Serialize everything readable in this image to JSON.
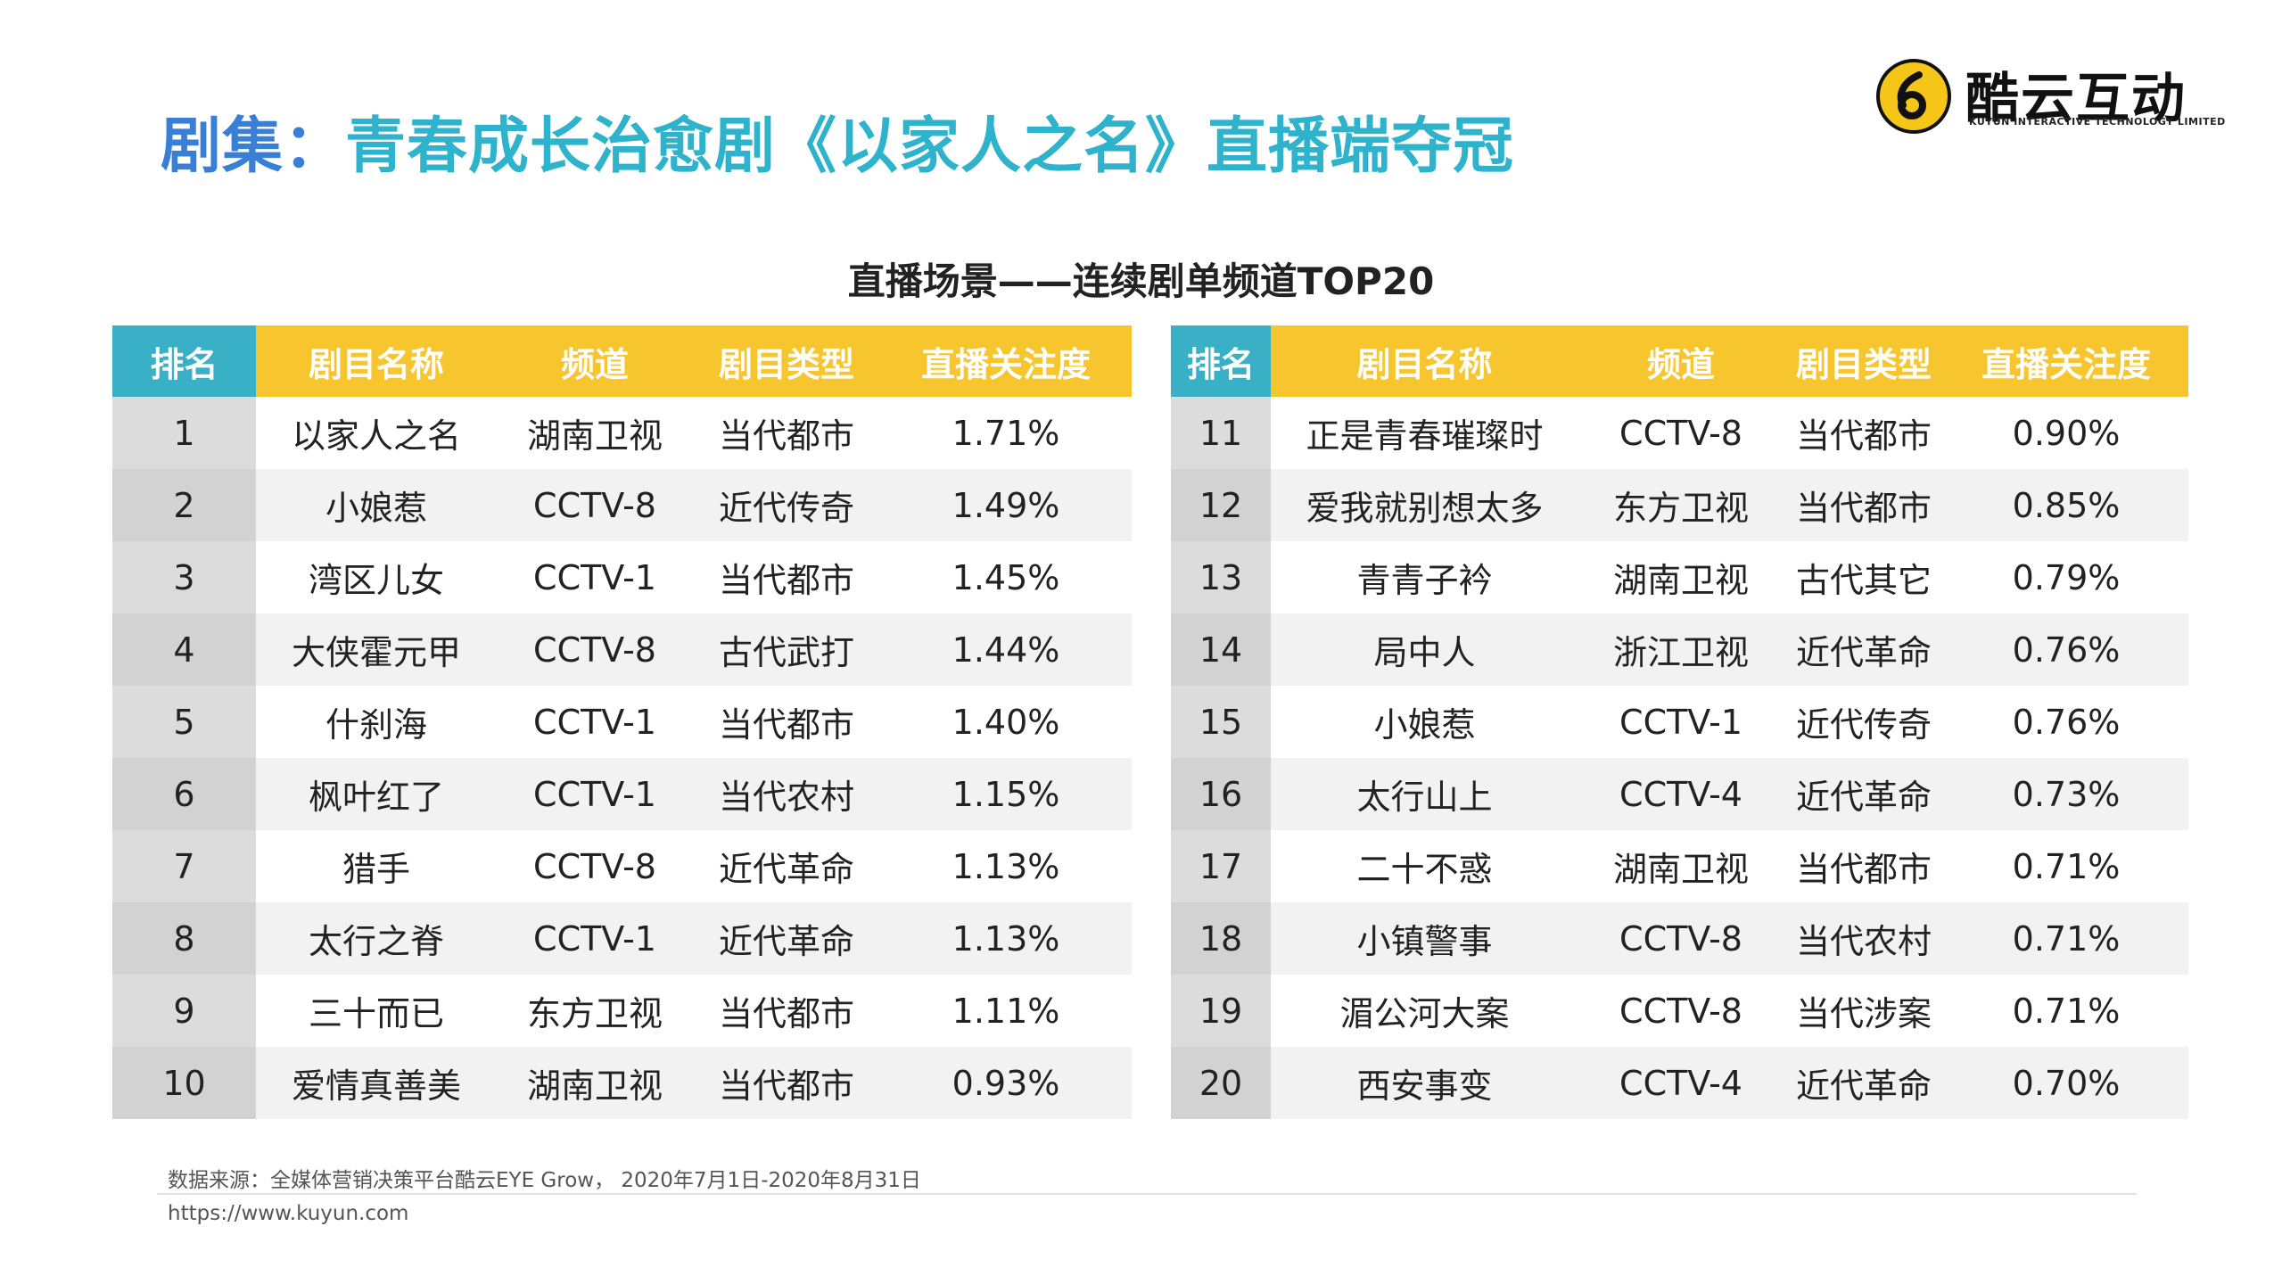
{
  "title": {
    "part1": "剧集：",
    "part2": "青春成长治愈剧《以家人之名》直播端夺冠"
  },
  "logo": {
    "name": "酷云互动",
    "tagline": "KUYUN INTERACTIVE TECHNOLOGY LIMITED",
    "mark_color": "#f5c518"
  },
  "subtitle": "直播场景——连续剧单频道TOP20",
  "table": {
    "headers": [
      "排名",
      "剧目名称",
      "频道",
      "剧目类型",
      "直播关注度"
    ],
    "left_rows": [
      [
        "1",
        "以家人之名",
        "湖南卫视",
        "当代都市",
        "1.71%"
      ],
      [
        "2",
        "小娘惹",
        "CCTV-8",
        "近代传奇",
        "1.49%"
      ],
      [
        "3",
        "湾区儿女",
        "CCTV-1",
        "当代都市",
        "1.45%"
      ],
      [
        "4",
        "大侠霍元甲",
        "CCTV-8",
        "古代武打",
        "1.44%"
      ],
      [
        "5",
        "什刹海",
        "CCTV-1",
        "当代都市",
        "1.40%"
      ],
      [
        "6",
        "枫叶红了",
        "CCTV-1",
        "当代农村",
        "1.15%"
      ],
      [
        "7",
        "猎手",
        "CCTV-8",
        "近代革命",
        "1.13%"
      ],
      [
        "8",
        "太行之脊",
        "CCTV-1",
        "近代革命",
        "1.13%"
      ],
      [
        "9",
        "三十而已",
        "东方卫视",
        "当代都市",
        "1.11%"
      ],
      [
        "10",
        "爱情真善美",
        "湖南卫视",
        "当代都市",
        "0.93%"
      ]
    ],
    "right_rows": [
      [
        "11",
        "正是青春璀璨时",
        "CCTV-8",
        "当代都市",
        "0.90%"
      ],
      [
        "12",
        "爱我就别想太多",
        "东方卫视",
        "当代都市",
        "0.85%"
      ],
      [
        "13",
        "青青子衿",
        "湖南卫视",
        "古代其它",
        "0.79%"
      ],
      [
        "14",
        "局中人",
        "浙江卫视",
        "近代革命",
        "0.76%"
      ],
      [
        "15",
        "小娘惹",
        "CCTV-1",
        "近代传奇",
        "0.76%"
      ],
      [
        "16",
        "太行山上",
        "CCTV-4",
        "近代革命",
        "0.73%"
      ],
      [
        "17",
        "二十不惑",
        "湖南卫视",
        "当代都市",
        "0.71%"
      ],
      [
        "18",
        "小镇警事",
        "CCTV-8",
        "当代农村",
        "0.71%"
      ],
      [
        "19",
        "湄公河大案",
        "CCTV-8",
        "当代涉案",
        "0.71%"
      ],
      [
        "20",
        "西安事变",
        "CCTV-4",
        "近代革命",
        "0.70%"
      ]
    ]
  },
  "footer": {
    "source": "数据来源：全媒体营销决策平台酷云EYE Grow，  2020年7月1日-2020年8月31日",
    "url": "https://www.kuyun.com"
  },
  "colors": {
    "title_primary": "#3a7fd6",
    "title_secondary": "#2fb3cd",
    "header_rank": "#3ab0c6",
    "header_main": "#f7c52e"
  }
}
